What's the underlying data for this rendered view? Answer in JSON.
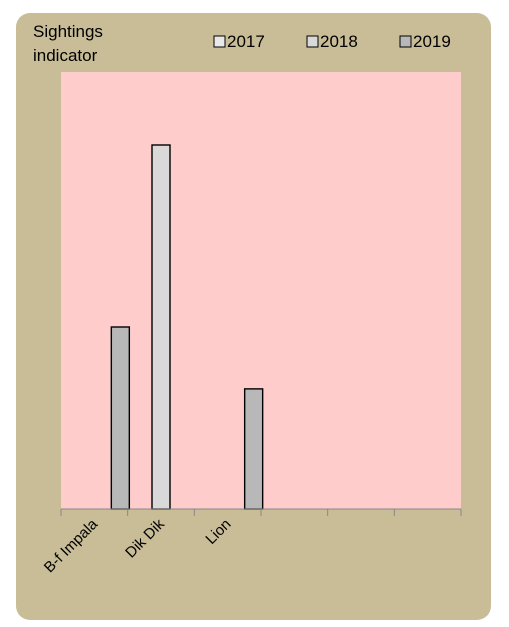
{
  "chart_data": {
    "type": "bar",
    "ylabel_lines": [
      "Sightings",
      "indicator"
    ],
    "xlabel": "",
    "categories": [
      "B-f Impala",
      "Dik Dik",
      "Lion",
      "",
      "",
      ""
    ],
    "series": [
      {
        "name": "2017",
        "values": [
          null,
          null,
          null,
          null,
          null,
          null
        ]
      },
      {
        "name": "2018",
        "values": [
          null,
          2.0,
          null,
          null,
          null,
          null
        ]
      },
      {
        "name": "2019",
        "values": [
          1.0,
          null,
          0.66,
          null,
          null,
          null
        ]
      }
    ],
    "ylim": [
      0,
      2.0
    ],
    "grid": false,
    "legend_position": "top-right",
    "colors": {
      "card_background": "#c9bd97",
      "plot_background": "#ffcccc",
      "series": [
        "#e8e8e8",
        "#d9d9d9",
        "#b8b8b8"
      ],
      "bar_stroke": "#000000",
      "axis": "#888888"
    }
  }
}
